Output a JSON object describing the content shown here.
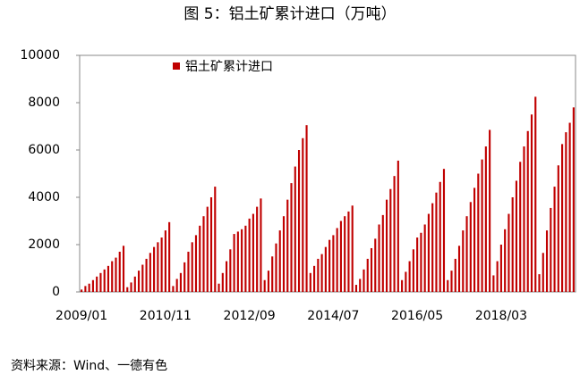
{
  "chart_data": {
    "type": "bar",
    "title": "图 5：铝土矿累计进口（万吨）",
    "source": "资料来源：Wind、一德有色",
    "series": [
      {
        "name": "铝土矿累计进口",
        "color": "#c00000",
        "values": [
          100,
          250,
          350,
          500,
          650,
          800,
          950,
          1100,
          1300,
          1450,
          1700,
          1950,
          200,
          400,
          650,
          900,
          1150,
          1400,
          1650,
          1900,
          2100,
          2300,
          2600,
          2950,
          250,
          550,
          800,
          1250,
          1700,
          2100,
          2400,
          2800,
          3200,
          3600,
          4000,
          4450,
          350,
          800,
          1300,
          1800,
          2450,
          2550,
          2650,
          2800,
          3100,
          3300,
          3600,
          3950,
          500,
          900,
          1500,
          2050,
          2600,
          3200,
          3900,
          4600,
          5300,
          6000,
          6500,
          7050,
          800,
          1100,
          1400,
          1600,
          1900,
          2200,
          2400,
          2700,
          3000,
          3200,
          3400,
          3650,
          300,
          550,
          950,
          1400,
          1850,
          2250,
          2850,
          3250,
          3900,
          4350,
          4900,
          5550,
          500,
          850,
          1300,
          1800,
          2300,
          2500,
          2850,
          3300,
          3750,
          4200,
          4650,
          5200,
          500,
          900,
          1400,
          1950,
          2600,
          3200,
          3800,
          4400,
          5000,
          5600,
          6150,
          6850,
          700,
          1300,
          2000,
          2650,
          3300,
          4000,
          4700,
          5500,
          6150,
          6800,
          7500,
          8250,
          750,
          1650,
          2600,
          3550,
          4450,
          5350,
          6250,
          6750,
          7150,
          7800
        ]
      }
    ],
    "categories": [
      "2009/01",
      null,
      null,
      null,
      null,
      null,
      null,
      null,
      null,
      null,
      null,
      null,
      null,
      null,
      null,
      null,
      null,
      null,
      null,
      null,
      null,
      null,
      "2010/11",
      null,
      null,
      null,
      null,
      null,
      null,
      null,
      null,
      null,
      null,
      null,
      null,
      null,
      null,
      null,
      null,
      null,
      null,
      null,
      null,
      null,
      "2012/09",
      null,
      null,
      null,
      null,
      null,
      null,
      null,
      null,
      null,
      null,
      null,
      null,
      null,
      null,
      null,
      null,
      null,
      null,
      null,
      null,
      null,
      "2014/07",
      null,
      null,
      null,
      null,
      null,
      null,
      null,
      null,
      null,
      null,
      null,
      null,
      null,
      null,
      null,
      null,
      null,
      null,
      null,
      null,
      null,
      "2016/05",
      null,
      null,
      null,
      null,
      null,
      null,
      null,
      null,
      null,
      null,
      null,
      null,
      null,
      null,
      null,
      null,
      null,
      null,
      null,
      null,
      null,
      "2018/03",
      null,
      null,
      null,
      null,
      null,
      null,
      null,
      null,
      null,
      null,
      null,
      null,
      null,
      null,
      null,
      null,
      null,
      null,
      null
    ],
    "ylim": [
      0,
      10000
    ],
    "yticks": [
      0,
      2000,
      4000,
      6000,
      8000,
      10000
    ],
    "grid": false
  }
}
